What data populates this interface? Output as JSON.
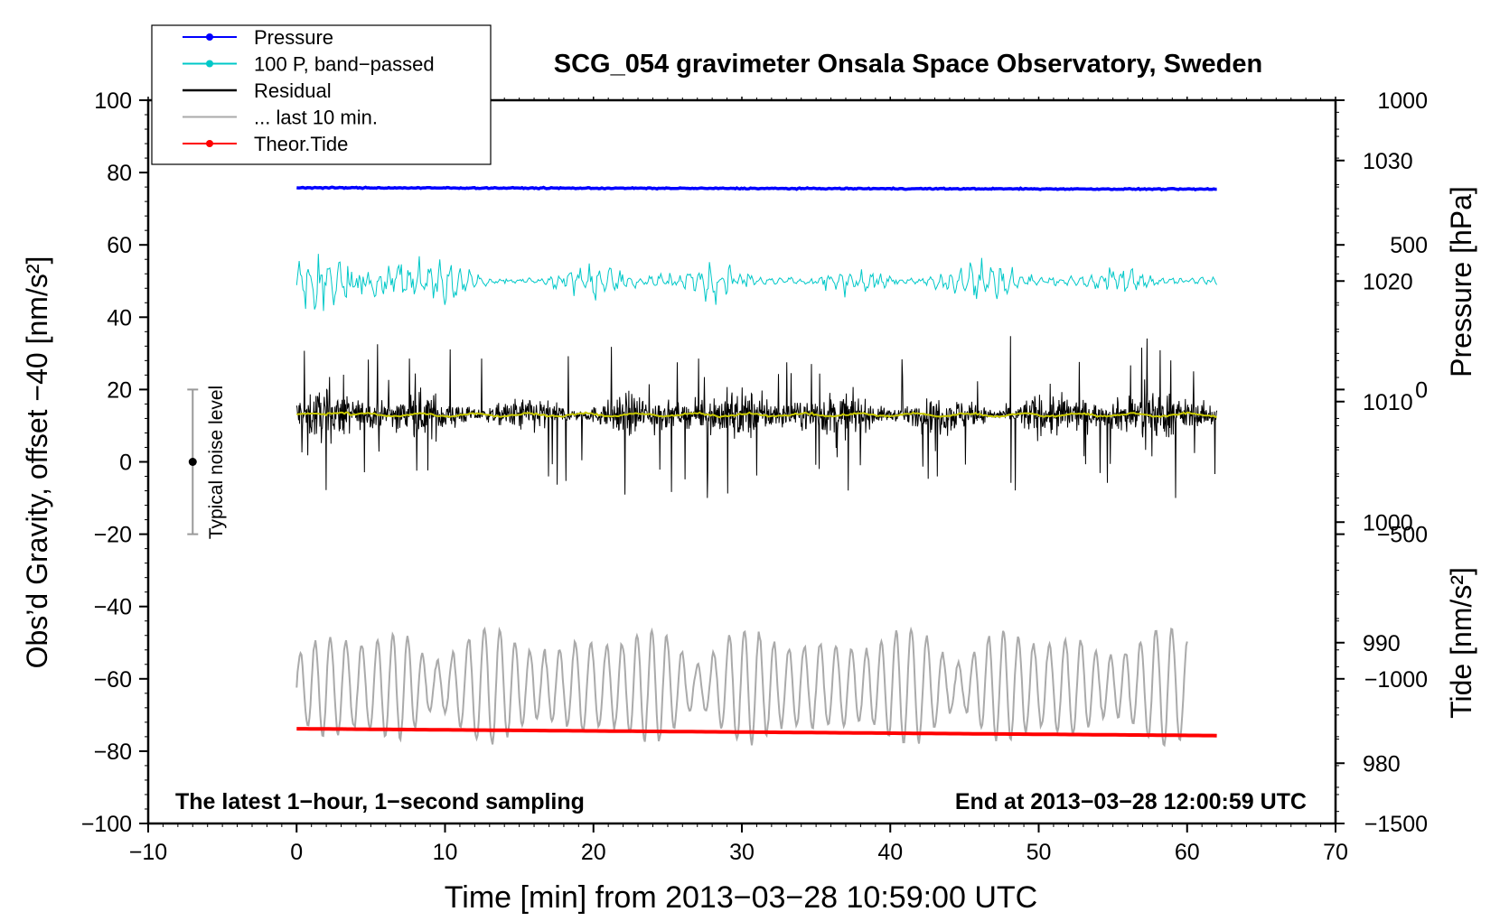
{
  "chart_data": {
    "type": "line",
    "title": "SCG_054 gravimeter Onsala Space Observatory, Sweden",
    "xlabel": "Time [min] from 2013−03−28 10:59:00 UTC",
    "ylabel_left": "Obs’d Gravity, offset −40 [nm/s²]",
    "ylabel_right_top": "Pressure [hPa]",
    "ylabel_right_bottom": "Tide [nm/s²]",
    "xlim": [
      -10,
      70
    ],
    "ylim": [
      -100,
      100
    ],
    "pressure_axis_range": [
      975,
      1035
    ],
    "tide_axis_range": [
      -1500,
      1000
    ],
    "x_ticks": [
      -10,
      0,
      10,
      20,
      30,
      40,
      50,
      60,
      70
    ],
    "x_tick_labels": [
      "−10",
      "0",
      "10",
      "20",
      "30",
      "40",
      "50",
      "60",
      "70"
    ],
    "y_ticks": [
      -100,
      -80,
      -60,
      -40,
      -20,
      0,
      20,
      40,
      60,
      80,
      100
    ],
    "y_tick_labels": [
      "−100",
      "−80",
      "−60",
      "−40",
      "−20",
      "0",
      "20",
      "40",
      "60",
      "80",
      "100"
    ],
    "pressure_ticks": [
      980,
      990,
      1000,
      1010,
      1020,
      1030
    ],
    "pressure_tick_labels": [
      "980",
      "990",
      "1000",
      "1010",
      "1020",
      "1030"
    ],
    "tide_ticks": [
      -1500,
      -1000,
      -500,
      0,
      500,
      1000
    ],
    "tide_tick_labels": [
      "−1500",
      "−1000",
      "−500",
      "0",
      "500",
      "1000"
    ],
    "annotation_left": "The latest 1−hour, 1−second sampling",
    "annotation_right": "End at 2013−03−28 12:00:59 UTC",
    "noise_bar": {
      "label": "Typical noise level",
      "x": -7,
      "center": 0,
      "low": -20,
      "high": 20
    },
    "legend": [
      {
        "label": "Pressure",
        "color": "#0000ff",
        "marker": true
      },
      {
        "label": "100 P, band−passed",
        "color": "#00c8c8",
        "marker": true
      },
      {
        "label": "Residual",
        "color": "#000000",
        "marker": false
      },
      {
        "label": "... last 10 min.",
        "color": "#aaaaaa",
        "marker": false
      },
      {
        "label": "Theor.Tide",
        "color": "#ff0000",
        "marker": true
      }
    ],
    "series": [
      {
        "name": "Pressure",
        "color": "#0000ff",
        "x_range": [
          0,
          62
        ],
        "start": 75.8,
        "end": 75.4,
        "noise": 0.15
      },
      {
        "name": "100 P, band-passed",
        "color": "#00c8c8",
        "x_range": [
          0,
          62
        ],
        "baseline": 50,
        "amplitude": 4.5
      },
      {
        "name": "Residual",
        "color": "#000000",
        "x_range": [
          0,
          62
        ],
        "baseline": 13,
        "amplitude": 9
      },
      {
        "name": "Residual (smoothed)",
        "color": "#c8c800",
        "x_range": [
          0,
          62
        ],
        "baseline": 13
      },
      {
        "name": "... last 10 min.",
        "color": "#aaaaaa",
        "x_range": [
          0,
          60
        ],
        "baseline": -62,
        "amplitude": 10
      },
      {
        "name": "Theor.Tide",
        "color": "#ff0000",
        "x_range": [
          0,
          62
        ],
        "start": -73.8,
        "end": -75.7
      }
    ]
  }
}
